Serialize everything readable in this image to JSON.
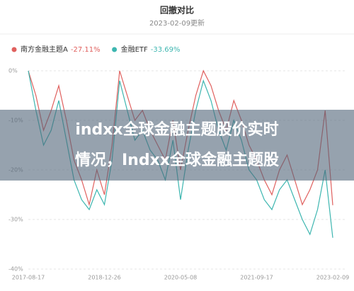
{
  "chart_data": {
    "type": "line",
    "title": "回撤对比",
    "subtitle": "2023-02-09更新",
    "categories": [
      "2017-08-17",
      null,
      null,
      null,
      null,
      null,
      null,
      null,
      null,
      null,
      "2018-12-26",
      null,
      null,
      null,
      null,
      null,
      null,
      null,
      null,
      null,
      "2020-05-08",
      null,
      null,
      null,
      null,
      null,
      null,
      null,
      null,
      null,
      "2021-09-17",
      null,
      null,
      null,
      null,
      null,
      null,
      null,
      null,
      null,
      "2023-02-09"
    ],
    "series": [
      {
        "name": "南方金融主题A",
        "change": "-27.11%",
        "color": "#e0605e",
        "values": [
          0,
          -5,
          -12,
          -8,
          -3,
          -10,
          -18,
          -22,
          -27,
          -20,
          -25,
          -15,
          0,
          -5,
          -10,
          -8,
          -12,
          -15,
          -18,
          -10,
          -20,
          -12,
          -5,
          0,
          -3,
          -8,
          -12,
          -6,
          -10,
          -15,
          -18,
          -22,
          -25,
          -20,
          -17,
          -22,
          -27,
          -24,
          -20,
          -8,
          -27.11
        ]
      },
      {
        "name": "金融ETF",
        "change": "-33.69%",
        "color": "#3db6b0",
        "values": [
          0,
          -8,
          -15,
          -12,
          -6,
          -14,
          -22,
          -26,
          -28,
          -24,
          -27,
          -18,
          -2,
          -8,
          -14,
          -12,
          -16,
          -18,
          -22,
          -14,
          -26,
          -16,
          -8,
          -2,
          -6,
          -12,
          -16,
          -10,
          -14,
          -20,
          -22,
          -26,
          -28,
          -24,
          -22,
          -26,
          -30,
          -33,
          -28,
          -20,
          -33.69
        ]
      }
    ],
    "ylim": [
      -40,
      0
    ],
    "yticks": [
      {
        "value": 0,
        "label": "0%"
      },
      {
        "value": -10,
        "label": "-10%"
      },
      {
        "value": -20,
        "label": "-20%"
      },
      {
        "value": -30,
        "label": "-30%"
      },
      {
        "value": -40,
        "label": "-40%"
      }
    ],
    "grid": true
  },
  "overlay": {
    "lines": [
      "indxx全球金融主题股价实时",
      "情况，Indxx全球金融主题股"
    ]
  }
}
